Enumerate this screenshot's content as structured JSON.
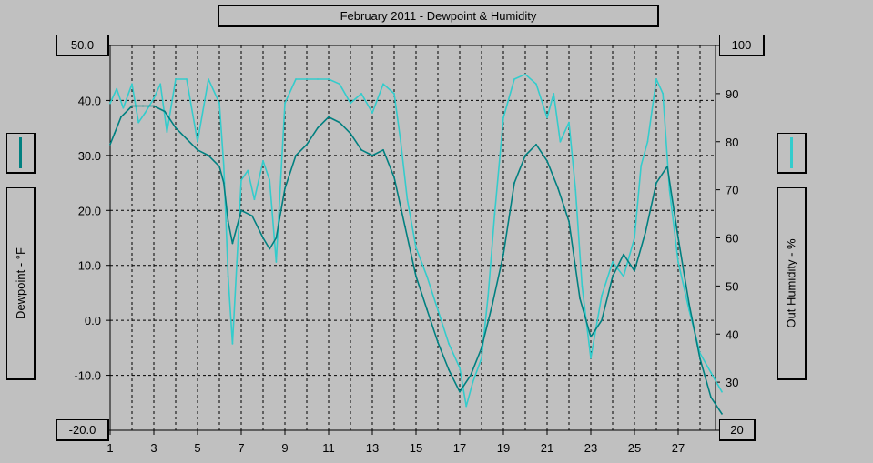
{
  "chart_data": {
    "type": "line",
    "title": "February 2011 - Dewpoint & Humidity",
    "xlabel": "",
    "x_ticks": [
      "1",
      "3",
      "5",
      "7",
      "9",
      "11",
      "13",
      "15",
      "17",
      "19",
      "21",
      "23",
      "25",
      "27"
    ],
    "xlim": [
      1,
      29
    ],
    "left_axis": {
      "label": "Dewpoint - °F",
      "ylim": [
        -20,
        50
      ],
      "ticks": [
        "50.0",
        "40.0",
        "30.0",
        "20.0",
        "10.0",
        "0.0",
        "-10.0",
        "-20.0"
      ],
      "top_value_box": "50.0",
      "bottom_value_box": "-20.0"
    },
    "right_axis": {
      "label": "Out Humidity - %",
      "ylim": [
        20,
        100
      ],
      "ticks": [
        "100",
        "90",
        "80",
        "70",
        "60",
        "50",
        "40",
        "30",
        "20"
      ],
      "top_value_box": "100",
      "bottom_value_box": "20"
    },
    "grid": true,
    "series": [
      {
        "name": "Dewpoint",
        "axis": "left",
        "color": "#008080",
        "x": [
          1,
          1.2,
          1.5,
          2,
          2.5,
          3,
          3.5,
          4,
          4.5,
          5,
          5.5,
          6,
          6.2,
          6.4,
          6.6,
          6.8,
          7,
          7.5,
          8,
          8.3,
          8.6,
          9,
          9.5,
          10,
          10.5,
          11,
          11.5,
          12,
          12.5,
          13,
          13.5,
          14,
          14.5,
          15,
          15.5,
          16,
          16.5,
          17,
          17.5,
          18,
          18.5,
          19,
          19.5,
          20,
          20.5,
          21,
          21.5,
          22,
          22.5,
          23,
          23.5,
          24,
          24.5,
          25,
          25.5,
          26,
          26.5,
          27,
          27.5,
          28,
          28.5,
          29
        ],
        "y": [
          32,
          34,
          37,
          39,
          39,
          39,
          38,
          35,
          33,
          31,
          30,
          28,
          25,
          18,
          14,
          17,
          20,
          19,
          15,
          13,
          15,
          24,
          30,
          32,
          35,
          37,
          36,
          34,
          31,
          30,
          31,
          26,
          17,
          8,
          2,
          -4,
          -9,
          -13,
          -10,
          -5,
          3,
          12,
          25,
          30,
          32,
          29,
          24,
          18,
          4,
          -3,
          0,
          8,
          12,
          9,
          16,
          25,
          28,
          15,
          3,
          -7,
          -14,
          -17
        ]
      },
      {
        "name": "Out Humidity",
        "axis": "right",
        "color": "#33cccc",
        "x": [
          1,
          1.3,
          1.6,
          2,
          2.3,
          2.6,
          3,
          3.3,
          3.6,
          4,
          4.5,
          5,
          5.5,
          6,
          6.2,
          6.4,
          6.6,
          6.8,
          7,
          7.3,
          7.6,
          8,
          8.3,
          8.6,
          9,
          9.5,
          10,
          10.5,
          11,
          11.5,
          12,
          12.5,
          13,
          13.5,
          14,
          14.3,
          14.6,
          15,
          15.5,
          16,
          16.5,
          17,
          17.3,
          17.6,
          18,
          18.3,
          18.6,
          19,
          19.5,
          20,
          20.5,
          21,
          21.3,
          21.6,
          22,
          22.3,
          22.6,
          23,
          23.5,
          24,
          24.5,
          25,
          25.3,
          25.6,
          26,
          26.3,
          26.6,
          27,
          27.5,
          28,
          28.5,
          29
        ],
        "y": [
          88,
          91,
          87,
          92,
          84,
          86,
          89,
          92,
          82,
          93,
          93,
          80,
          93,
          88,
          75,
          52,
          38,
          55,
          72,
          74,
          68,
          76,
          72,
          55,
          88,
          93,
          93,
          93,
          93,
          92,
          88,
          90,
          86,
          92,
          90,
          80,
          68,
          58,
          52,
          45,
          38,
          33,
          25,
          30,
          35,
          48,
          65,
          85,
          93,
          94,
          92,
          85,
          90,
          80,
          84,
          70,
          50,
          35,
          48,
          55,
          52,
          60,
          75,
          80,
          93,
          90,
          70,
          55,
          45,
          36,
          32,
          28
        ]
      }
    ]
  },
  "legend": {
    "dewpoint_color": "#008080",
    "humidity_color": "#33cccc"
  }
}
